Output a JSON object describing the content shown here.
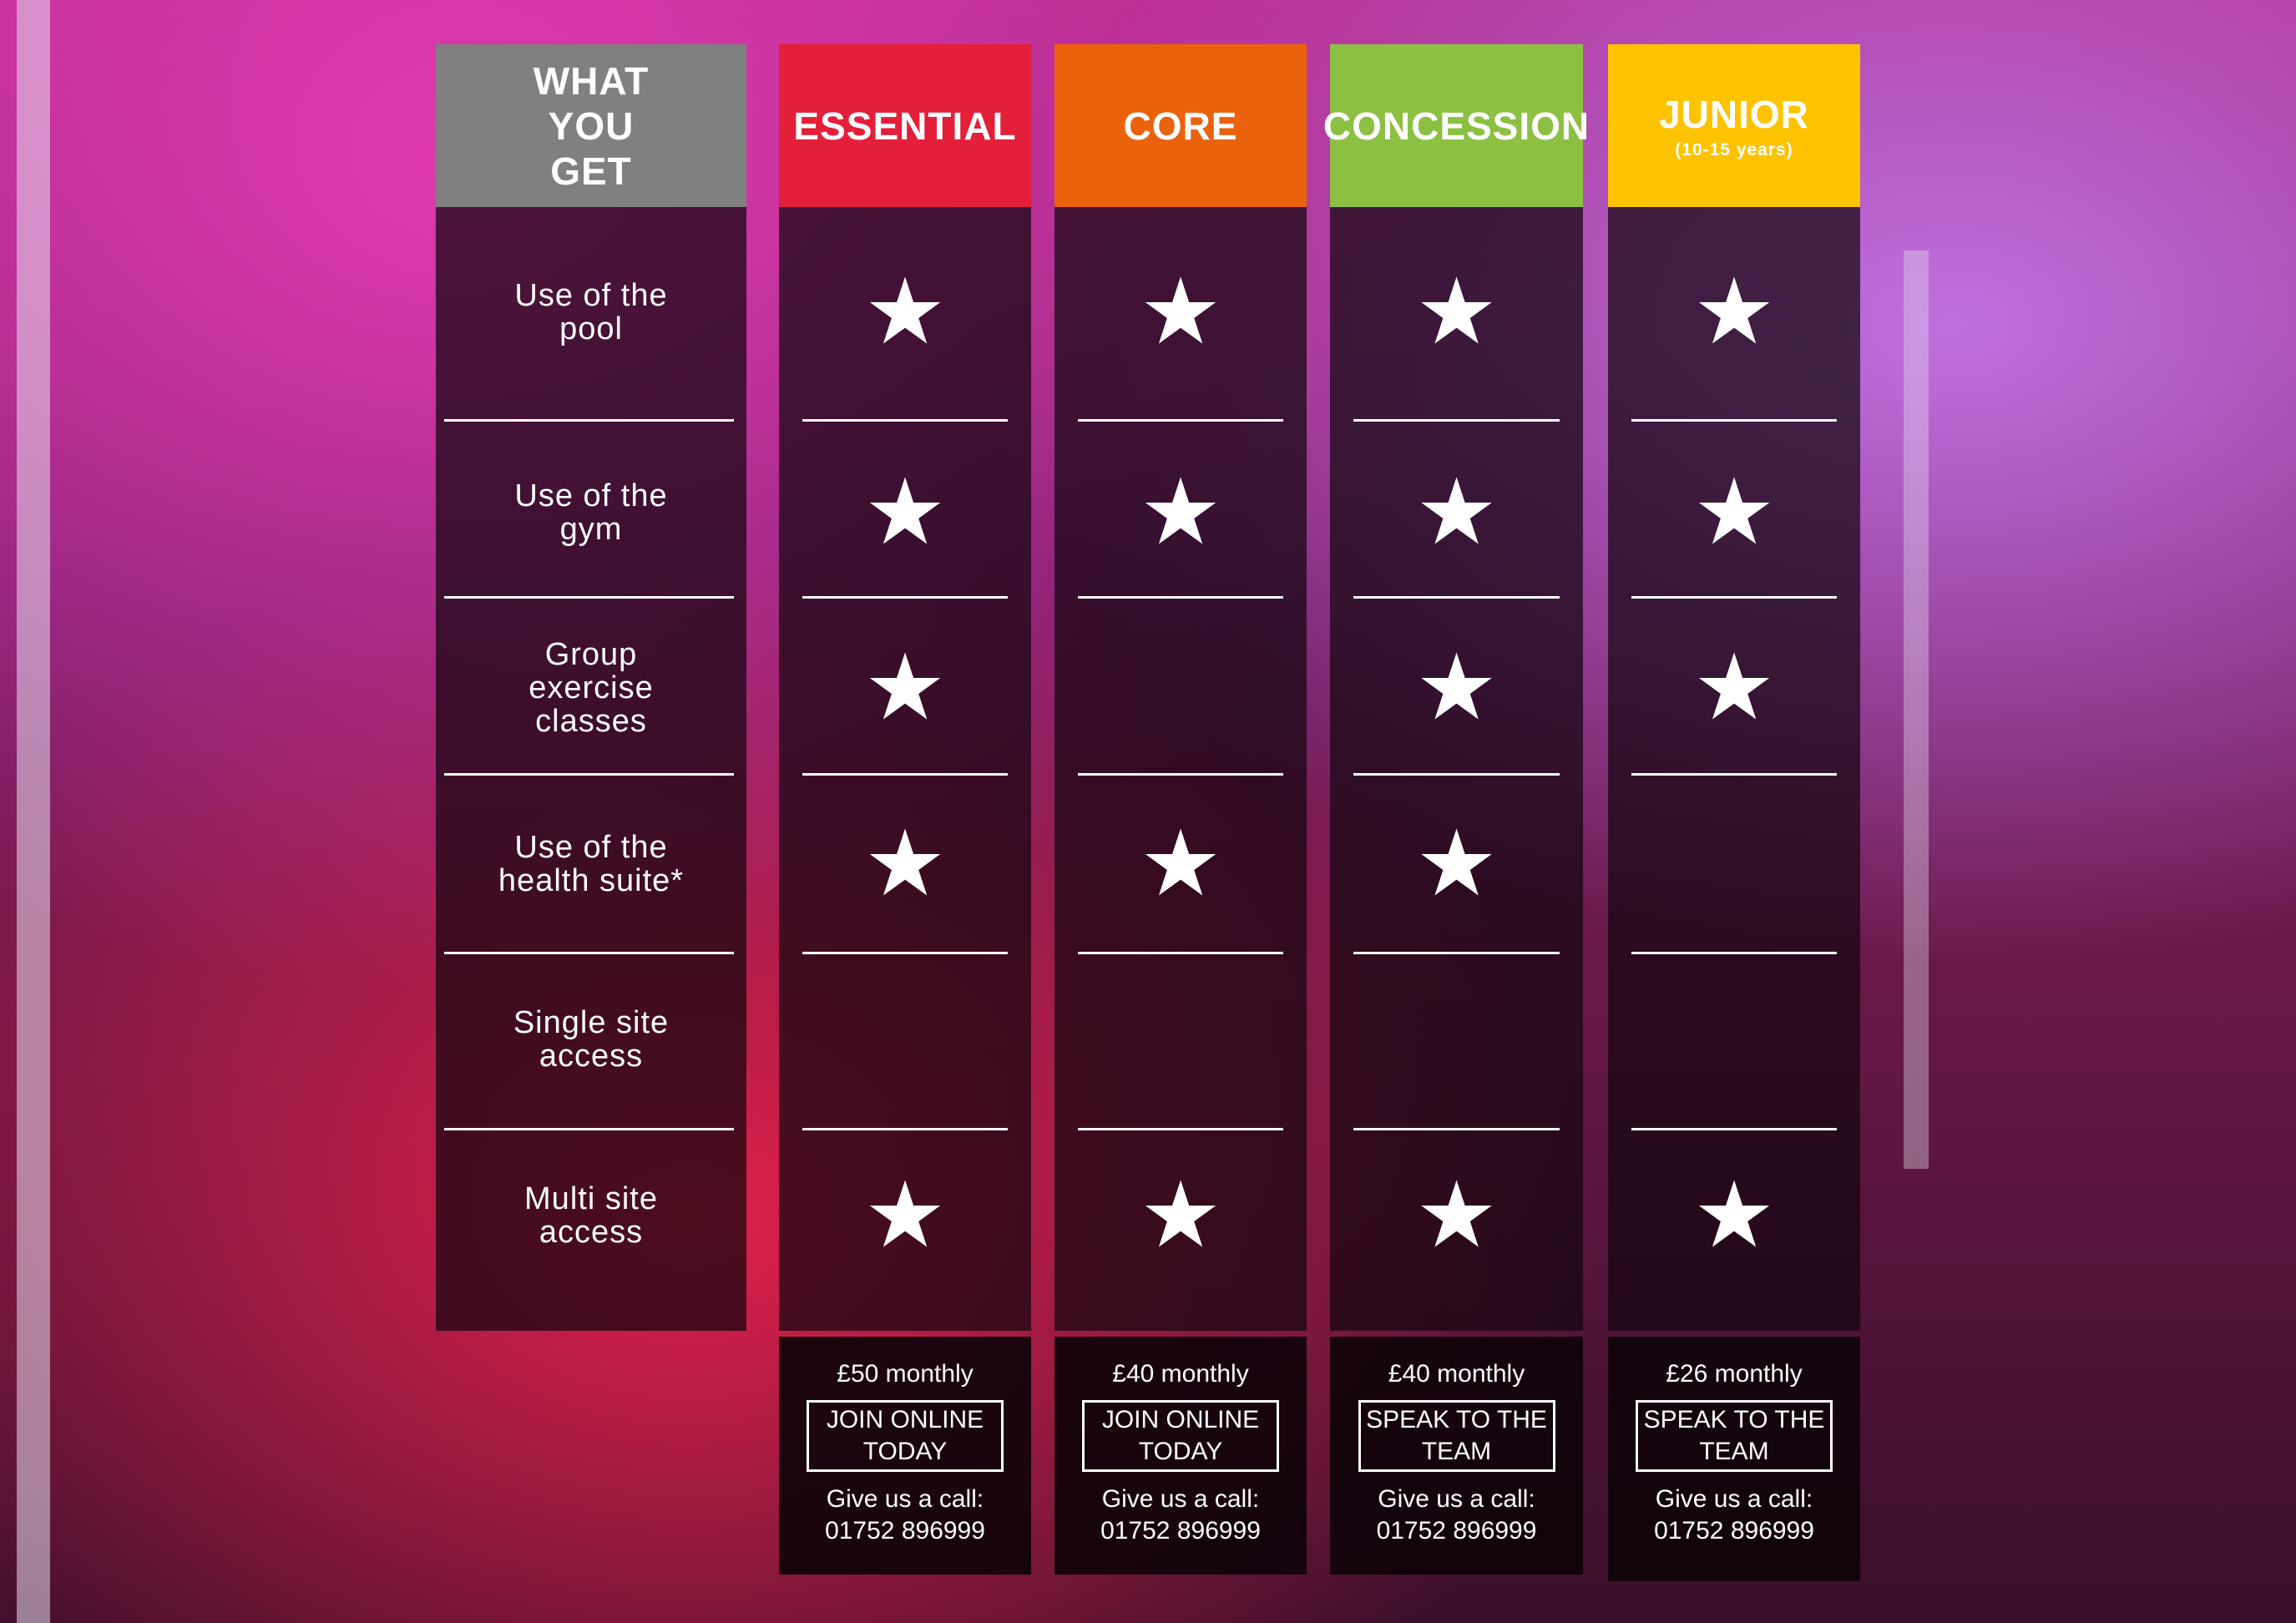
{
  "header": {
    "features_title": "WHAT YOU GET"
  },
  "plans": [
    {
      "name": "ESSENTIAL",
      "color": "#e41f3a",
      "price": "£50 monthly",
      "cta": "JOIN ONLINE TODAY",
      "call_label": "Give us a call:",
      "phone": "01752 896999",
      "included": [
        true,
        true,
        true,
        true,
        false,
        true
      ]
    },
    {
      "name": "CORE",
      "color": "#eb620c",
      "price": "£40 monthly",
      "cta": "JOIN ONLINE TODAY",
      "call_label": "Give us a call:",
      "phone": "01752 896999",
      "included": [
        true,
        true,
        false,
        true,
        false,
        true
      ]
    },
    {
      "name": "CONCESSION",
      "color": "#8cc043",
      "price": "£40 monthly",
      "cta": "SPEAK TO THE TEAM",
      "call_label": "Give us a call:",
      "phone": "01752 896999",
      "included": [
        true,
        true,
        true,
        true,
        false,
        true
      ]
    },
    {
      "name": "JUNIOR",
      "subtitle": "(10-15 years)",
      "color": "#fdc301",
      "price": "£26 monthly",
      "cta": "SPEAK TO THE TEAM",
      "call_label": "Give us a call:",
      "phone": "01752 896999",
      "included": [
        true,
        true,
        true,
        false,
        false,
        true
      ]
    }
  ],
  "features": [
    "Use of the pool",
    "Use of the gym",
    "Group exercise classes",
    "Use of the health suite*",
    "Single site access",
    "Multi site access"
  ],
  "icons": {
    "included": "star-icon"
  },
  "colors": {
    "features_header": "#808080"
  }
}
